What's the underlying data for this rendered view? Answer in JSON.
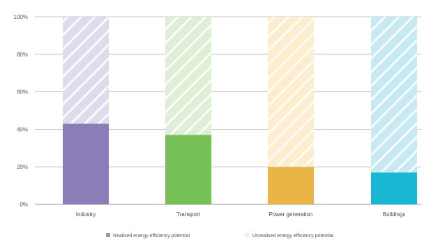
{
  "chart_data": {
    "type": "bar",
    "stacked": true,
    "categories": [
      "Industry",
      "Transport",
      "Power generation",
      "Buildings"
    ],
    "series": [
      {
        "name": "Realised energy efficiency potential",
        "values": [
          43,
          37,
          20,
          17
        ],
        "colors": [
          "#8c7db8",
          "#75c155",
          "#e9b547",
          "#1ab7d4"
        ]
      },
      {
        "name": "Unrealised energy efficiency potential",
        "values": [
          57,
          63,
          80,
          83
        ],
        "colors": [
          "#dedcec",
          "#dfefd6",
          "#fcedcf",
          "#c7eaf2"
        ]
      }
    ],
    "y_ticks": [
      "0%",
      "20%",
      "40%",
      "60%",
      "80%",
      "100%"
    ],
    "ylim": [
      0,
      100
    ],
    "grid": true,
    "legend_position": "bottom",
    "legend_colors": [
      "#9a9a9a",
      "#eeeeee"
    ]
  }
}
